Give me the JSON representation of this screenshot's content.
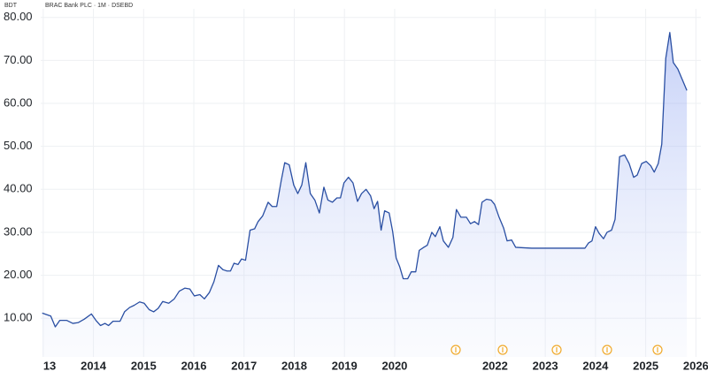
{
  "chart_data": {
    "type": "line",
    "ylabel": "BDT",
    "title": "BRAC Bank PLC · 1M · DSEBD",
    "color": "#2a4fa3",
    "grid": true,
    "xlim": [
      2012.95,
      2026.1
    ],
    "ylim": [
      1,
      82
    ],
    "xticks": [
      {
        "value": 2013,
        "label": "13"
      },
      2014,
      2015,
      2016,
      2017,
      2018,
      2019,
      2020,
      2022,
      2023,
      2024,
      2025,
      2026
    ],
    "yticks": [
      {
        "value": 10,
        "label": "10.00"
      },
      {
        "value": 20,
        "label": "20.00"
      },
      {
        "value": 30,
        "label": "30.00"
      },
      {
        "value": 40,
        "label": "40.00"
      },
      {
        "value": 50,
        "label": "50.00"
      },
      {
        "value": 60,
        "label": "60.00"
      },
      {
        "value": 70,
        "label": "70.00"
      },
      {
        "value": 80,
        "label": "80.00"
      }
    ],
    "x": [
      2012.98,
      2013.15,
      2013.24,
      2013.33,
      2013.47,
      2013.59,
      2013.7,
      2013.82,
      2013.96,
      2014.05,
      2014.14,
      2014.23,
      2014.3,
      2014.39,
      2014.53,
      2014.62,
      2014.72,
      2014.81,
      2014.92,
      2015.01,
      2015.11,
      2015.2,
      2015.29,
      2015.38,
      2015.5,
      2015.61,
      2015.71,
      2015.82,
      2015.92,
      2016.01,
      2016.12,
      2016.21,
      2016.31,
      2016.4,
      2016.49,
      2016.58,
      2016.66,
      2016.73,
      2016.8,
      2016.88,
      2016.95,
      2017.03,
      2017.12,
      2017.21,
      2017.28,
      2017.37,
      2017.48,
      2017.56,
      2017.65,
      2017.74,
      2017.81,
      2017.9,
      2017.99,
      2018.07,
      2018.15,
      2018.23,
      2018.32,
      2018.41,
      2018.5,
      2018.59,
      2018.67,
      2018.76,
      2018.85,
      2018.92,
      2018.99,
      2019.08,
      2019.17,
      2019.26,
      2019.34,
      2019.43,
      2019.52,
      2019.59,
      2019.66,
      2019.73,
      2019.8,
      2019.89,
      2019.96,
      2020.03,
      2020.1,
      2020.17,
      2020.26,
      2020.33,
      2020.42,
      2020.49,
      2020.58,
      2020.65,
      2020.74,
      2020.81,
      2020.9,
      2020.97,
      2021.07,
      2021.16,
      2021.23,
      2021.32,
      2021.43,
      2021.51,
      2021.59,
      2021.67,
      2021.74,
      2021.83,
      2021.92,
      2021.99,
      2022.08,
      2022.17,
      2022.24,
      2022.33,
      2022.41,
      2022.56,
      2022.73,
      2023.08,
      2023.44,
      2023.79,
      2023.86,
      2023.93,
      2024.0,
      2024.07,
      2024.16,
      2024.23,
      2024.32,
      2024.39,
      2024.48,
      2024.58,
      2024.67,
      2024.76,
      2024.83,
      2024.92,
      2025.01,
      2025.1,
      2025.17,
      2025.25,
      2025.32,
      2025.4,
      2025.48,
      2025.55,
      2025.64,
      2025.73,
      2025.82
    ],
    "values": [
      11.2,
      10.5,
      8.0,
      9.5,
      9.5,
      8.8,
      9.0,
      9.8,
      11.0,
      9.5,
      8.3,
      8.8,
      8.3,
      9.3,
      9.3,
      11.5,
      12.5,
      13.0,
      13.8,
      13.5,
      12.0,
      11.5,
      12.3,
      13.9,
      13.5,
      14.5,
      16.3,
      17.0,
      16.8,
      15.2,
      15.5,
      14.5,
      16.0,
      18.5,
      22.3,
      21.3,
      21.0,
      21.0,
      22.8,
      22.5,
      23.8,
      23.5,
      30.5,
      30.8,
      32.5,
      33.8,
      37.0,
      36.0,
      36.0,
      42.0,
      46.2,
      45.7,
      41.0,
      39.0,
      41.0,
      46.2,
      39.0,
      37.5,
      34.5,
      40.5,
      37.5,
      37.0,
      38.0,
      38.0,
      41.5,
      42.8,
      41.5,
      37.2,
      39.0,
      40.0,
      38.5,
      35.5,
      37.2,
      30.5,
      35.0,
      34.5,
      30.2,
      24.0,
      22.0,
      19.2,
      19.2,
      20.8,
      20.8,
      25.8,
      26.5,
      27.0,
      30.0,
      29.0,
      31.3,
      28.0,
      26.5,
      28.8,
      35.3,
      33.5,
      33.5,
      32.0,
      32.5,
      31.8,
      37.0,
      37.7,
      37.5,
      36.5,
      33.5,
      31.0,
      28.0,
      28.2,
      26.5,
      26.4,
      26.3,
      26.3,
      26.3,
      26.3,
      27.5,
      28.0,
      31.3,
      29.8,
      28.5,
      30.0,
      30.5,
      33.0,
      47.6,
      48.0,
      46.0,
      42.8,
      43.3,
      46.0,
      46.5,
      45.5,
      44.0,
      46.0,
      50.5,
      70.5,
      76.5,
      69.5,
      68.0,
      65.5,
      63.0
    ]
  }
}
